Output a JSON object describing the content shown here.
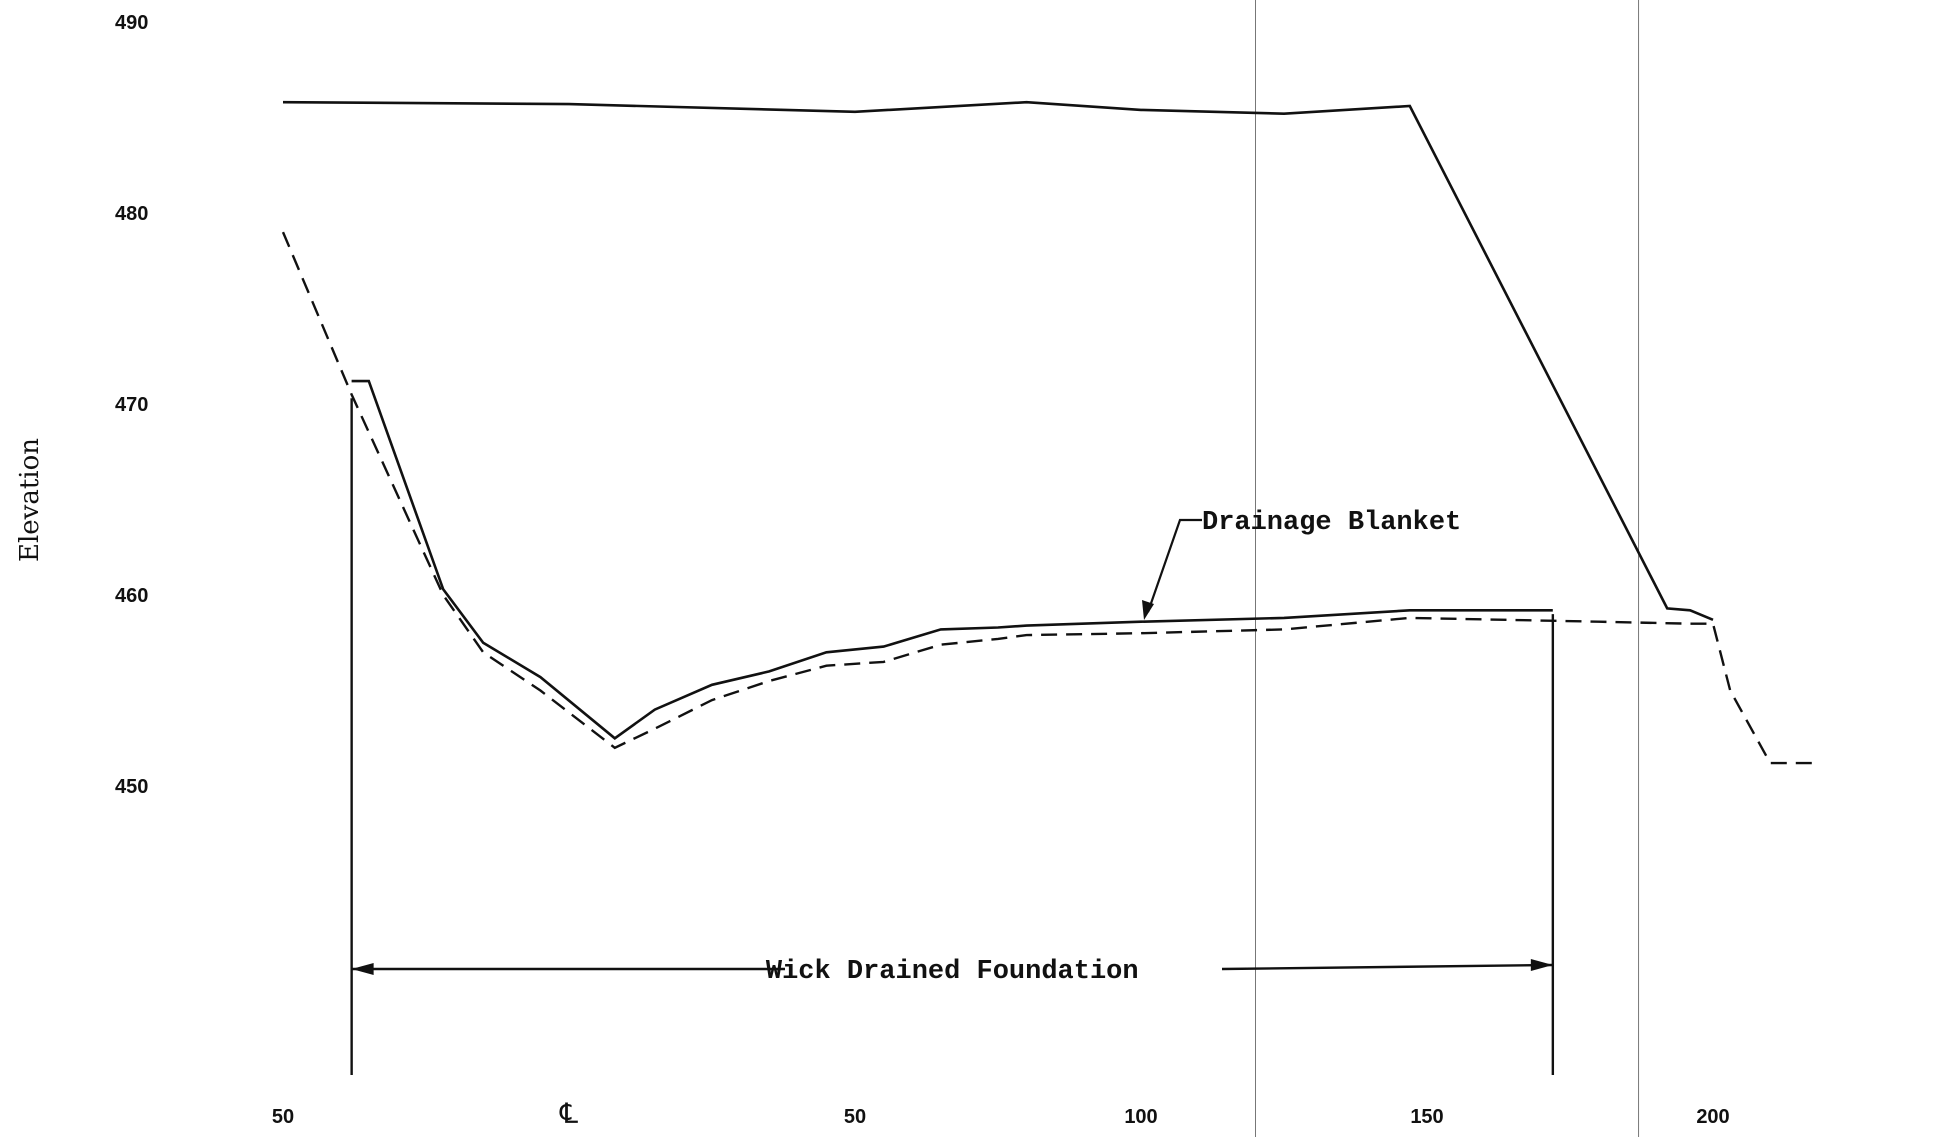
{
  "chart_data": {
    "type": "line",
    "title": "",
    "xlabel": "",
    "ylabel": "Elevation",
    "ylim": [
      440,
      490
    ],
    "y_ticks": [
      "490",
      "480",
      "470",
      "460",
      "450"
    ],
    "x_ticks": [
      "50",
      "℄",
      "50",
      "100",
      "150",
      "200"
    ],
    "grid": false,
    "series": [
      {
        "style": "solid",
        "x": [
          -50,
          0,
          50,
          80,
          100,
          125,
          147,
          192,
          196,
          200
        ],
        "y": [
          485.8,
          485.7,
          485.3,
          485.8,
          485.4,
          485.2,
          485.6,
          459.3,
          459.2,
          458.7
        ]
      },
      {
        "style": "dashed",
        "x": [
          -50,
          -38,
          -22,
          -15,
          -5,
          8,
          15,
          25,
          35,
          45,
          55,
          65,
          75,
          80,
          100,
          125,
          147,
          180,
          196,
          200,
          203,
          210,
          218
        ],
        "y": [
          479.0,
          470.5,
          460.0,
          457.0,
          455.0,
          452.0,
          453.0,
          454.5,
          455.5,
          456.3,
          456.5,
          457.4,
          457.7,
          457.9,
          458.0,
          458.2,
          458.8,
          458.6,
          458.5,
          458.5,
          455.0,
          451.2,
          451.2
        ]
      },
      {
        "style": "solid",
        "x": [
          -38,
          -35,
          -22,
          -15,
          -5,
          8,
          15,
          25,
          35,
          45,
          55,
          65,
          75,
          80,
          100,
          125,
          147,
          172
        ],
        "y": [
          471.2,
          471.2,
          460.3,
          457.5,
          455.7,
          452.5,
          454.0,
          455.3,
          456.0,
          457.0,
          457.3,
          458.2,
          458.3,
          458.4,
          458.6,
          458.8,
          459.2,
          459.2
        ]
      }
    ],
    "annotations": {
      "drainage_blanket": "Drainage Blanket",
      "wick_drained_foundation": "Wick Drained Foundation"
    },
    "wick_drained_extent": [
      -38,
      172
    ],
    "reference_lines_x": [
      120,
      187
    ]
  }
}
